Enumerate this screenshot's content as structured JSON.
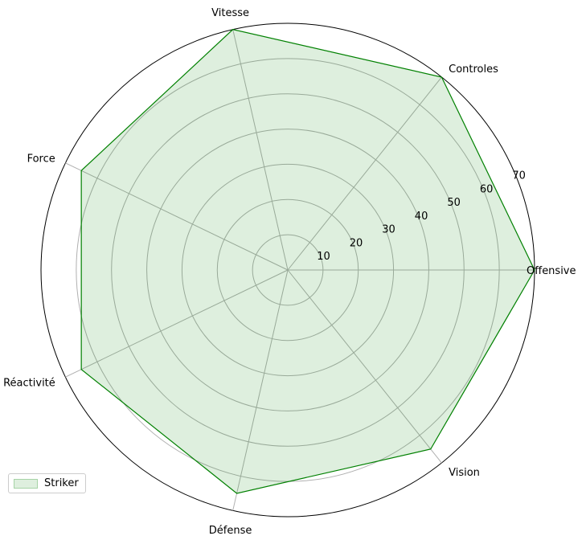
{
  "chart_data": {
    "type": "radar",
    "categories": [
      "Offensive",
      "Controles",
      "Vitesse",
      "Force",
      "Réactivité",
      "Défense",
      "Vision"
    ],
    "series": [
      {
        "name": "Striker",
        "values": [
          70,
          70,
          70,
          65,
          65,
          65,
          65
        ]
      }
    ],
    "rlim": [
      0,
      70
    ],
    "rticks": [
      10,
      20,
      30,
      40,
      50,
      60,
      70
    ],
    "grid": true,
    "legend_position": "lower-left",
    "colors": {
      "line": "#008000",
      "fill": "#008000",
      "fill_opacity": 0.13,
      "grid": "#b0b0b0"
    }
  },
  "legend": {
    "label": "Striker"
  }
}
